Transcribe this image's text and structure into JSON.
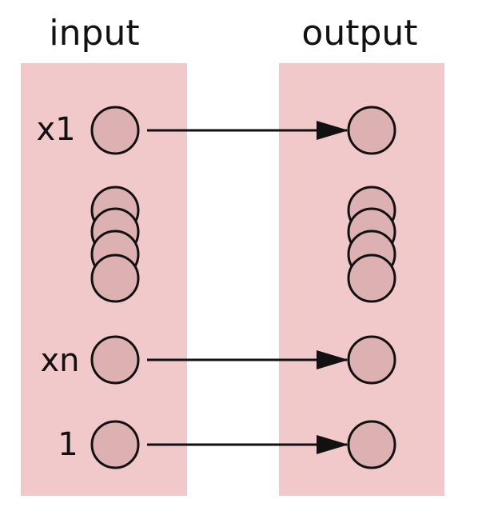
{
  "colors": {
    "layer_fill": "#f2c9ca",
    "node_fill": "#ddb1b2",
    "stroke": "#111111"
  },
  "layers": {
    "input_title": "input",
    "output_title": "output"
  },
  "nodes": {
    "x1_label": "x1",
    "xn_label": "xn",
    "bias_label": "1"
  }
}
